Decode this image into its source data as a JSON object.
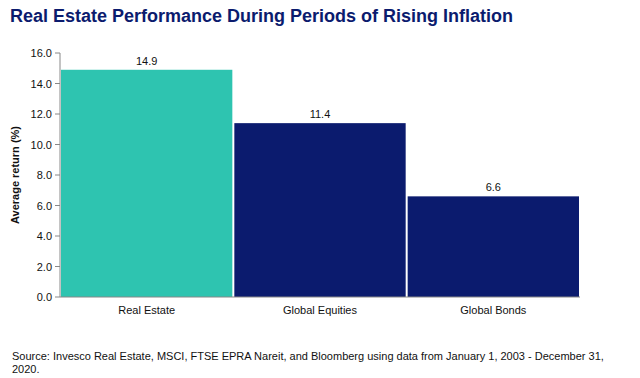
{
  "chart_data": {
    "type": "bar",
    "title": "Real Estate Performance During Periods of Rising Inflation",
    "y_label": "Average return (%)",
    "categories": [
      "Real Estate",
      "Global Equities",
      "Global Bonds"
    ],
    "values": [
      14.9,
      11.4,
      6.6
    ],
    "colors": [
      "#2ec4b0",
      "#0b1b6e",
      "#0b1b6e"
    ],
    "ylim": [
      0,
      16
    ],
    "yticks": [
      {
        "value": 0,
        "label": "0.0"
      },
      {
        "value": 2,
        "label": "2.0"
      },
      {
        "value": 4,
        "label": "4.0"
      },
      {
        "value": 6,
        "label": "6.0"
      },
      {
        "value": 8,
        "label": "8.0"
      },
      {
        "value": 10,
        "label": "10.0"
      },
      {
        "value": 12,
        "label": "12.0"
      },
      {
        "value": 14,
        "label": "14.0"
      },
      {
        "value": 16,
        "label": "16.0"
      }
    ],
    "grid": false,
    "data_labels": true,
    "source": "Source: Invesco Real Estate, MSCI, FTSE EPRA Nareit, and Bloomberg using data from January 1, 2003 - December 31, 2020."
  }
}
